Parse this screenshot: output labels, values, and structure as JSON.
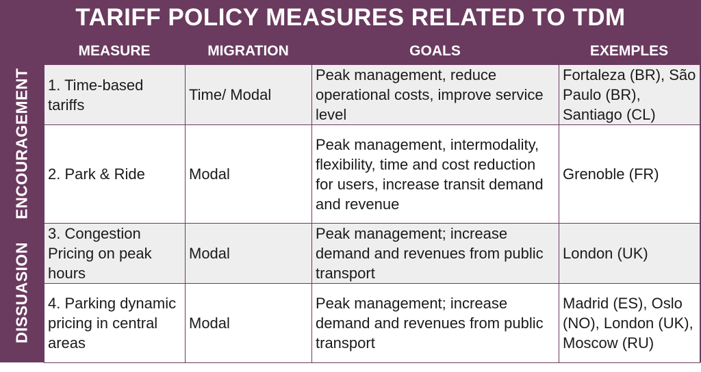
{
  "title": "TARIFF POLICY MEASURES RELATED TO TDM",
  "headers": {
    "measure": "MEASURE",
    "migration": "MIGRATION",
    "goals": "GOALS",
    "examples": "EXEMPLES"
  },
  "groups": {
    "encouragement": "ENCOURAGEMENT",
    "dissuasion": "DISSUASION"
  },
  "rows": [
    {
      "measure": "1. Time-based tariffs",
      "migration": "Time/ Modal",
      "goals": "Peak management, reduce operational costs, improve service level",
      "examples": "Fortaleza (BR), São Paulo (BR), Santiago (CL)"
    },
    {
      "measure": "2. Park & Ride",
      "migration": "Modal",
      "goals": "Peak management, intermodality, flexibility, time and cost reduction for users, increase transit demand and revenue",
      "examples": "Grenoble (FR)"
    },
    {
      "measure": "3. Congestion Pricing on peak hours",
      "migration": "Modal",
      "goals": "Peak management; increase demand and revenues from public transport",
      "examples": "London (UK)"
    },
    {
      "measure": "4. Parking dynamic pricing in central areas",
      "migration": "Modal",
      "goals": "Peak management; increase demand and revenues from public transport",
      "examples": "Madrid (ES), Oslo (NO), London (UK), Moscow (RU)"
    }
  ]
}
